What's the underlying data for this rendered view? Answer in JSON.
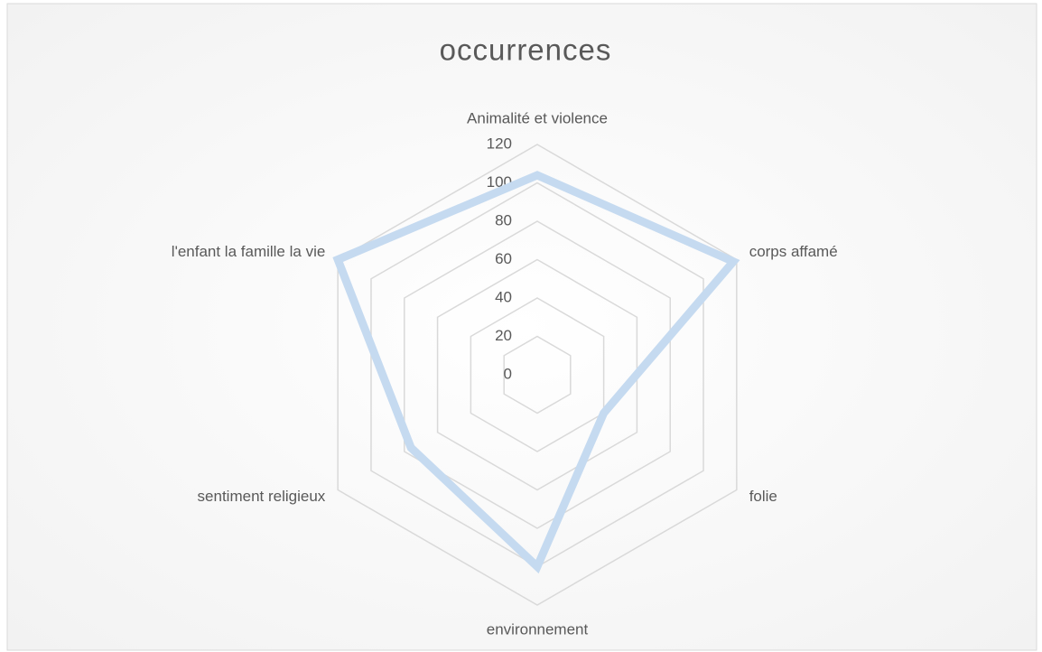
{
  "chart_data": {
    "type": "radar",
    "title": "occurrences",
    "categories": [
      "Animalité et violence",
      "corps affamé",
      "folie",
      "environnement",
      "sentiment religieux",
      "l'enfant la famille la vie"
    ],
    "values": [
      104,
      118,
      40,
      100,
      76,
      120
    ],
    "color": "#c5daf0",
    "ylim": [
      0,
      120
    ],
    "yticks": [
      0,
      20,
      40,
      60,
      80,
      100,
      120
    ],
    "grid": true
  }
}
